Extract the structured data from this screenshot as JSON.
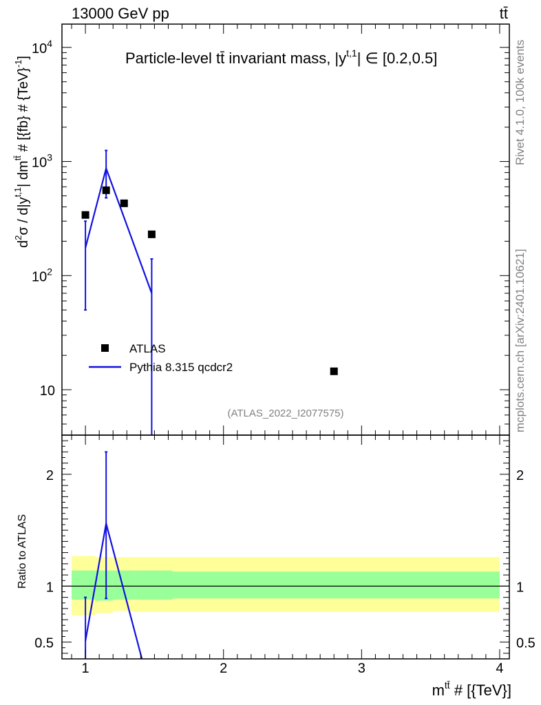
{
  "header": {
    "left": "13000 GeV pp",
    "right": "tt̄"
  },
  "side_labels": {
    "rivet": "Rivet 4.1.0,  100k events",
    "mcplots": "mcplots.cern.ch [arXiv:2401.10621]"
  },
  "chart_data": {
    "type": "scatter",
    "title": "Particle-level tt̄ invariant mass, |y^{t,1}| ∈ [0.2,0.5]",
    "title_parts": {
      "main": "Particle-level tt̄ invariant mass, |y",
      "sup": "t,1",
      "tail": "| ∈ [0.2,0.5]"
    },
    "analysis_tag": "(ATLAS_2022_I2077575)",
    "ylabel": "d²σ / d|y^{t,1}| dm^{tt̄} # [{fb} # {TeV}^{-1}]",
    "ylabel_parts": [
      "d",
      "2",
      "σ / d|y",
      "t,1",
      "| dm",
      "tt̄",
      " # [{fb} # {TeV}",
      "-1",
      "]"
    ],
    "xlabel": "m^{tt̄} # [{TeV}]",
    "xlabel_parts": [
      "m",
      "tt̄",
      " # [{TeV}]"
    ],
    "ratio_ylabel": "Ratio to ATLAS",
    "xlim": [
      0.83,
      4.07
    ],
    "ylim": [
      4,
      16000
    ],
    "ratio_ylim": [
      0.35,
      2.35
    ],
    "x_ticks": [
      1,
      2,
      3,
      4
    ],
    "x_tick_labels": [
      "1",
      "2",
      "3",
      "4"
    ],
    "y_ticks": [
      10,
      100,
      1000,
      10000
    ],
    "y_tick_labels": [
      {
        "base": "10",
        "exp": ""
      },
      {
        "base": "10",
        "exp": "2"
      },
      {
        "base": "10",
        "exp": "3"
      },
      {
        "base": "10",
        "exp": "4"
      }
    ],
    "ratio_ticks": [
      0.5,
      1,
      2
    ],
    "ratio_tick_labels": [
      "0.5",
      "1",
      "2"
    ],
    "legend": [
      "ATLAS",
      "Pythia 8.315 qcdcr2"
    ],
    "legend_position": "center-left",
    "series": [
      {
        "name": "ATLAS",
        "kind": "data",
        "color": "#000000",
        "points": [
          {
            "x": 1.0,
            "y": 340
          },
          {
            "x": 1.15,
            "y": 560
          },
          {
            "x": 1.28,
            "y": 430
          },
          {
            "x": 1.48,
            "y": 230
          },
          {
            "x": 2.8,
            "y": 14.5
          }
        ]
      },
      {
        "name": "Pythia 8.315 qcdcr2",
        "kind": "mc",
        "color": "#1010e0",
        "points": [
          {
            "x": 1.0,
            "y": 175,
            "ylo": 50,
            "yhi": 300
          },
          {
            "x": 1.15,
            "y": 870,
            "ylo": 480,
            "yhi": 1250
          },
          {
            "x": 1.48,
            "y": 70,
            "ylo": 1,
            "yhi": 140
          }
        ]
      }
    ],
    "ratio": {
      "mc_points": [
        {
          "x": 1.0,
          "y": 0.51,
          "ylo": 0.1,
          "yhi": 0.9
        },
        {
          "x": 1.15,
          "y": 1.56,
          "ylo": 0.89,
          "yhi": 2.2
        },
        {
          "x": 1.42,
          "y": 0.3
        }
      ],
      "bands": [
        {
          "x0": 0.9,
          "x1": 1.07,
          "inner": [
            0.88,
            1.14
          ],
          "outer": [
            0.74,
            1.27
          ]
        },
        {
          "x0": 1.07,
          "x1": 1.2,
          "inner": [
            0.87,
            1.14
          ],
          "outer": [
            0.76,
            1.26
          ]
        },
        {
          "x0": 1.2,
          "x1": 1.35,
          "inner": [
            0.88,
            1.14
          ],
          "outer": [
            0.78,
            1.26
          ]
        },
        {
          "x0": 1.35,
          "x1": 1.63,
          "inner": [
            0.88,
            1.14
          ],
          "outer": [
            0.77,
            1.26
          ]
        },
        {
          "x0": 1.63,
          "x1": 4.0,
          "inner": [
            0.89,
            1.13
          ],
          "outer": [
            0.77,
            1.26
          ]
        }
      ],
      "band_colors": {
        "outer": "#ffff99",
        "inner": "#99ff99"
      }
    }
  }
}
